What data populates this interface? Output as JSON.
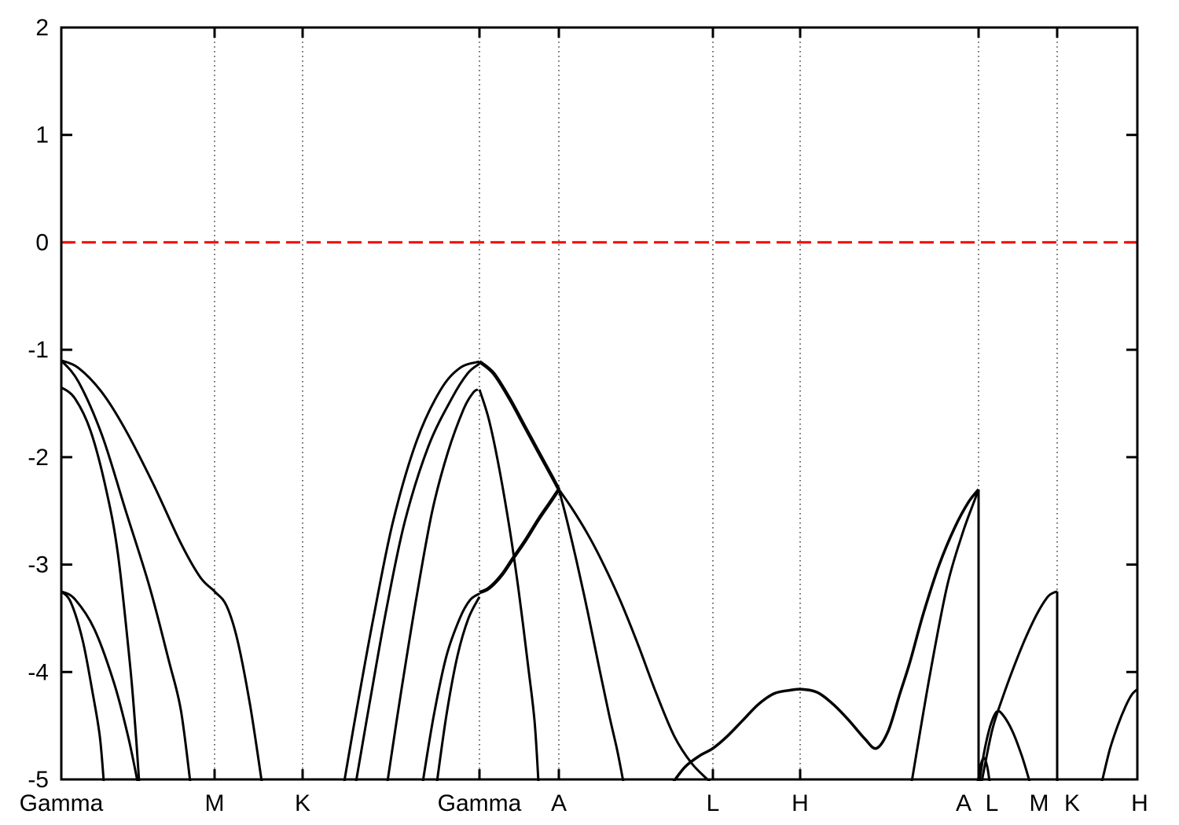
{
  "chart_data": {
    "type": "line",
    "title": "",
    "xlabel": "",
    "ylabel": "",
    "description": "Electronic band structure along hexagonal high-symmetry k-path; energies in eV relative to Fermi level (red dashed line at 0). Panels separated by vertical lines at the A|L and M|K joins.",
    "ylim": [
      -5,
      2
    ],
    "yticks": [
      2,
      1,
      0,
      -1,
      -2,
      -3,
      -4,
      -5
    ],
    "d_range": [
      0,
      1369
    ],
    "grid": true,
    "fermi_line": {
      "energy": 0,
      "color": "#ff0000",
      "style": "dashed"
    },
    "band_color": "#000000",
    "kpoints": [
      {
        "label": "Gamma",
        "d": 0,
        "label_d": 0,
        "gridline": false
      },
      {
        "label": "M",
        "d": 195,
        "label_d": 195,
        "gridline": true
      },
      {
        "label": "K",
        "d": 307,
        "label_d": 307,
        "gridline": true
      },
      {
        "label": "Gamma",
        "d": 532,
        "label_d": 532,
        "gridline": true
      },
      {
        "label": "A",
        "d": 633,
        "label_d": 633,
        "gridline": true
      },
      {
        "label": "L",
        "d": 829,
        "label_d": 829,
        "gridline": true
      },
      {
        "label": "H",
        "d": 940,
        "label_d": 940,
        "gridline": true
      },
      {
        "label": "A",
        "d": 1167,
        "label_d": 1148,
        "gridline": true
      },
      {
        "label": "L",
        "d": 1167,
        "label_d": 1184,
        "gridline": false
      },
      {
        "label": "M",
        "d": 1267,
        "label_d": 1244,
        "gridline": true
      },
      {
        "label": "K",
        "d": 1267,
        "label_d": 1286,
        "gridline": false
      },
      {
        "label": "H",
        "d": 1369,
        "label_d": 1372,
        "gridline": false
      }
    ],
    "bands": [
      {
        "name": "G-M upper to M plateau",
        "lw": 3,
        "pts": [
          [
            0,
            -1.1
          ],
          [
            22,
            -1.17
          ],
          [
            52,
            -1.4
          ],
          [
            82,
            -1.75
          ],
          [
            117,
            -2.25
          ],
          [
            152,
            -2.8
          ],
          [
            177,
            -3.12
          ],
          [
            195,
            -3.25
          ],
          [
            210,
            -3.38
          ],
          [
            224,
            -3.7
          ],
          [
            240,
            -4.3
          ],
          [
            255,
            -5.02
          ]
        ]
      },
      {
        "name": "G-M second from -1.1",
        "lw": 3,
        "pts": [
          [
            0,
            -1.1
          ],
          [
            22,
            -1.3
          ],
          [
            52,
            -1.8
          ],
          [
            82,
            -2.5
          ],
          [
            112,
            -3.2
          ],
          [
            137,
            -3.9
          ],
          [
            152,
            -4.35
          ],
          [
            164,
            -5.02
          ]
        ]
      },
      {
        "name": "G-M from -1.35",
        "lw": 3,
        "pts": [
          [
            0,
            -1.35
          ],
          [
            17,
            -1.45
          ],
          [
            37,
            -1.75
          ],
          [
            57,
            -2.3
          ],
          [
            72,
            -2.9
          ],
          [
            87,
            -3.9
          ],
          [
            94,
            -4.5
          ],
          [
            99,
            -5.02
          ]
        ]
      },
      {
        "name": "G-M steep from -3.25",
        "lw": 3,
        "pts": [
          [
            0,
            -3.25
          ],
          [
            12,
            -3.35
          ],
          [
            27,
            -3.7
          ],
          [
            40,
            -4.2
          ],
          [
            49,
            -4.6
          ],
          [
            54,
            -5.02
          ]
        ]
      },
      {
        "name": "G-M shallow from -3.25",
        "lw": 3,
        "pts": [
          [
            0,
            -3.25
          ],
          [
            17,
            -3.32
          ],
          [
            42,
            -3.6
          ],
          [
            67,
            -4.1
          ],
          [
            85,
            -4.6
          ],
          [
            97,
            -5.02
          ]
        ]
      },
      {
        "name": "K-G rise outer to -1.1 apex",
        "lw": 3,
        "pts": [
          [
            360,
            -5.02
          ],
          [
            377,
            -4.3
          ],
          [
            397,
            -3.5
          ],
          [
            422,
            -2.6
          ],
          [
            452,
            -1.85
          ],
          [
            482,
            -1.38
          ],
          [
            507,
            -1.17
          ],
          [
            532,
            -1.11
          ]
        ]
      },
      {
        "name": "K-G rise inner to -1.1 apex",
        "lw": 3,
        "pts": [
          [
            375,
            -5.02
          ],
          [
            392,
            -4.3
          ],
          [
            414,
            -3.4
          ],
          [
            437,
            -2.6
          ],
          [
            467,
            -1.9
          ],
          [
            497,
            -1.45
          ],
          [
            517,
            -1.22
          ],
          [
            532,
            -1.13
          ]
        ]
      },
      {
        "name": "K-G rise to -1.37 apex",
        "lw": 3,
        "pts": [
          [
            415,
            -5.02
          ],
          [
            432,
            -4.2
          ],
          [
            452,
            -3.3
          ],
          [
            472,
            -2.5
          ],
          [
            492,
            -1.95
          ],
          [
            512,
            -1.55
          ],
          [
            524,
            -1.4
          ],
          [
            530,
            -1.37
          ]
        ]
      },
      {
        "name": "K-G rise to plateau a",
        "lw": 3,
        "pts": [
          [
            460,
            -5.02
          ],
          [
            474,
            -4.4
          ],
          [
            490,
            -3.85
          ],
          [
            507,
            -3.5
          ],
          [
            520,
            -3.33
          ],
          [
            532,
            -3.27
          ]
        ]
      },
      {
        "name": "K-G rise to plateau b",
        "lw": 3,
        "pts": [
          [
            478,
            -5.02
          ],
          [
            490,
            -4.4
          ],
          [
            504,
            -3.85
          ],
          [
            518,
            -3.5
          ],
          [
            532,
            -3.3
          ]
        ]
      },
      {
        "name": "G-A degenerate descent to A",
        "lw": 4.5,
        "pts": [
          [
            532,
            -1.11
          ],
          [
            550,
            -1.22
          ],
          [
            570,
            -1.45
          ],
          [
            590,
            -1.72
          ],
          [
            607,
            -1.95
          ],
          [
            622,
            -2.15
          ],
          [
            633,
            -2.3
          ]
        ]
      },
      {
        "name": "G-A steep descent from -1.37",
        "lw": 3,
        "pts": [
          [
            532,
            -1.37
          ],
          [
            544,
            -1.65
          ],
          [
            557,
            -2.1
          ],
          [
            570,
            -2.65
          ],
          [
            582,
            -3.25
          ],
          [
            594,
            -3.95
          ],
          [
            602,
            -4.45
          ],
          [
            607,
            -5.02
          ]
        ]
      },
      {
        "name": "G-A degenerate rise from plateau",
        "lw": 4.5,
        "pts": [
          [
            532,
            -3.26
          ],
          [
            544,
            -3.22
          ],
          [
            560,
            -3.1
          ],
          [
            574,
            -2.95
          ],
          [
            590,
            -2.78
          ],
          [
            607,
            -2.58
          ],
          [
            622,
            -2.42
          ],
          [
            633,
            -2.3
          ]
        ]
      },
      {
        "name": "A-L steep branch",
        "lw": 3,
        "pts": [
          [
            633,
            -2.3
          ],
          [
            642,
            -2.55
          ],
          [
            655,
            -2.95
          ],
          [
            670,
            -3.45
          ],
          [
            684,
            -3.95
          ],
          [
            697,
            -4.4
          ],
          [
            707,
            -4.72
          ],
          [
            715,
            -5.02
          ]
        ]
      },
      {
        "name": "A-L shallow branch",
        "lw": 3,
        "pts": [
          [
            633,
            -2.3
          ],
          [
            650,
            -2.48
          ],
          [
            670,
            -2.72
          ],
          [
            690,
            -3.0
          ],
          [
            712,
            -3.35
          ],
          [
            734,
            -3.75
          ],
          [
            757,
            -4.2
          ],
          [
            780,
            -4.6
          ],
          [
            802,
            -4.85
          ],
          [
            825,
            -5.02
          ]
        ]
      },
      {
        "name": "L-H-A low band with dip",
        "lw": 3.5,
        "pts": [
          [
            779,
            -5.02
          ],
          [
            794,
            -4.88
          ],
          [
            812,
            -4.78
          ],
          [
            829,
            -4.71
          ],
          [
            847,
            -4.6
          ],
          [
            867,
            -4.45
          ],
          [
            887,
            -4.3
          ],
          [
            907,
            -4.2
          ],
          [
            927,
            -4.17
          ],
          [
            942,
            -4.16
          ],
          [
            962,
            -4.19
          ],
          [
            982,
            -4.3
          ],
          [
            1002,
            -4.45
          ],
          [
            1022,
            -4.62
          ],
          [
            1037,
            -4.71
          ],
          [
            1052,
            -4.55
          ],
          [
            1067,
            -4.2
          ],
          [
            1080,
            -3.9
          ],
          [
            1097,
            -3.45
          ],
          [
            1117,
            -3.0
          ],
          [
            1137,
            -2.65
          ],
          [
            1154,
            -2.42
          ],
          [
            1167,
            -2.3
          ]
        ]
      },
      {
        "name": "H-A second rise",
        "lw": 3,
        "pts": [
          [
            1082,
            -5.02
          ],
          [
            1105,
            -4.03
          ],
          [
            1127,
            -3.2
          ],
          [
            1147,
            -2.7
          ],
          [
            1162,
            -2.4
          ],
          [
            1167,
            -2.3
          ]
        ]
      },
      {
        "name": "panel separator A|L",
        "lw": 3,
        "straight": true,
        "pts": [
          [
            1167,
            -2.3
          ],
          [
            1167,
            -5.02
          ]
        ]
      },
      {
        "name": "L-M small arc",
        "lw": 3,
        "pts": [
          [
            1168,
            -5.02
          ],
          [
            1174,
            -4.75
          ],
          [
            1182,
            -4.5
          ],
          [
            1190,
            -4.37
          ],
          [
            1198,
            -4.4
          ],
          [
            1210,
            -4.55
          ],
          [
            1222,
            -4.78
          ],
          [
            1232,
            -5.02
          ]
        ]
      },
      {
        "name": "L-M tiny arc",
        "lw": 3,
        "pts": [
          [
            1166,
            -5.02
          ],
          [
            1170,
            -4.86
          ],
          [
            1174,
            -4.8
          ],
          [
            1178,
            -4.88
          ],
          [
            1181,
            -5.02
          ]
        ]
      },
      {
        "name": "L-M rising band",
        "lw": 3,
        "pts": [
          [
            1171,
            -5.02
          ],
          [
            1184,
            -4.55
          ],
          [
            1197,
            -4.25
          ],
          [
            1212,
            -3.95
          ],
          [
            1227,
            -3.68
          ],
          [
            1242,
            -3.45
          ],
          [
            1255,
            -3.3
          ],
          [
            1263,
            -3.26
          ],
          [
            1267,
            -3.25
          ]
        ]
      },
      {
        "name": "panel separator M|K",
        "lw": 3,
        "straight": true,
        "pts": [
          [
            1267,
            -3.25
          ],
          [
            1267,
            -5.02
          ]
        ]
      },
      {
        "name": "K-H rising band",
        "lw": 3,
        "pts": [
          [
            1324,
            -5.02
          ],
          [
            1334,
            -4.72
          ],
          [
            1344,
            -4.5
          ],
          [
            1354,
            -4.32
          ],
          [
            1362,
            -4.21
          ],
          [
            1369,
            -4.16
          ]
        ]
      }
    ]
  }
}
